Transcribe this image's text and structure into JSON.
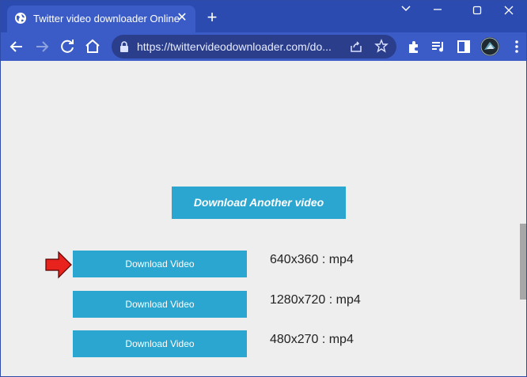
{
  "browser": {
    "tab": {
      "title": "Twitter video downloader Online",
      "close_glyph": "✕",
      "favicon": "globe-icon"
    },
    "new_tab_glyph": "+",
    "url": "https://twittervideodownloader.com/do...",
    "icons": [
      "back-icon",
      "forward-icon",
      "reload-icon",
      "home-icon",
      "lock-icon",
      "share-icon",
      "star-icon",
      "extensions-icon",
      "media-control-icon",
      "side-panel-icon",
      "avatar",
      "menu-icon"
    ],
    "accent_colors": {
      "titlebar": "#2b4bb0",
      "toolbar": "#3b5cc6"
    }
  },
  "page": {
    "another_button": "Download Another video",
    "downloads": [
      {
        "button": "Download Video",
        "resolution": "640x360 : mp4"
      },
      {
        "button": "Download Video",
        "resolution": "1280x720 : mp4"
      },
      {
        "button": "Download Video",
        "resolution": "480x270 : mp4"
      }
    ],
    "colors": {
      "button": "#2aa6d0",
      "arrow": "#e8221c",
      "background": "#eeeeee"
    }
  }
}
